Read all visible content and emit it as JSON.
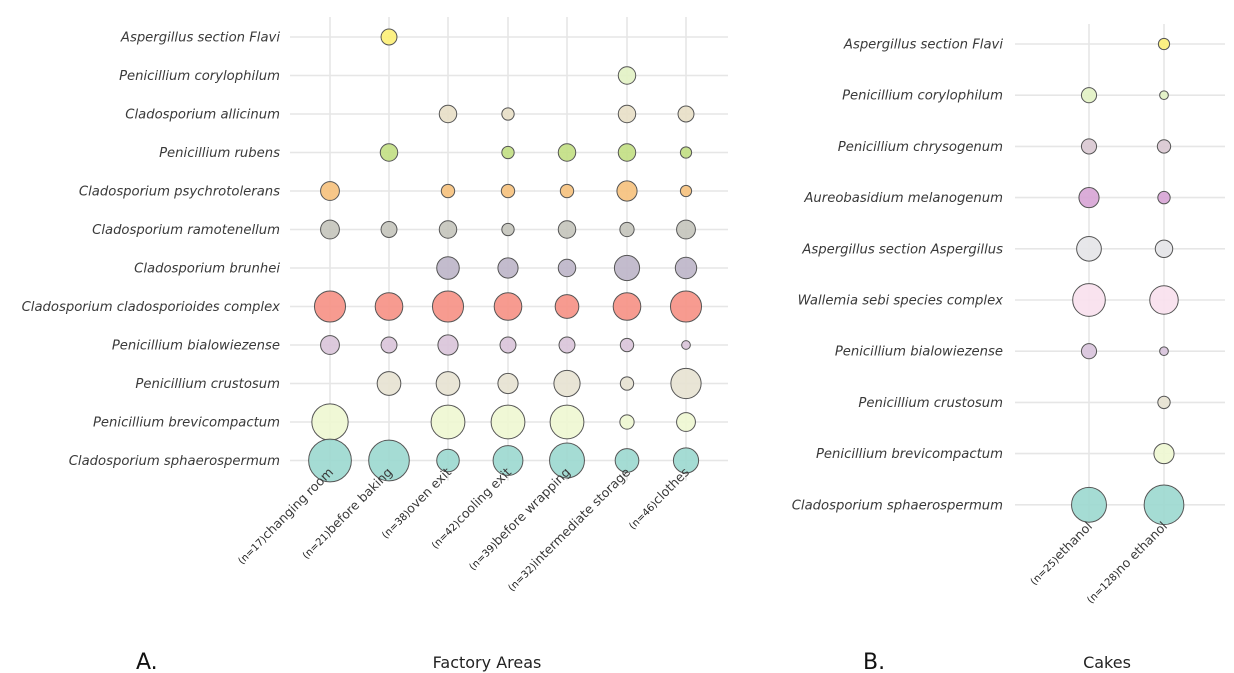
{
  "chart_data": [
    {
      "type": "scatter",
      "panel_label": "A.",
      "xlabel": "Factory Areas",
      "ylabel": "",
      "categories": [
        {
          "count": "(n=17)",
          "name": "changing room"
        },
        {
          "count": "(n=21)",
          "name": "before baking"
        },
        {
          "count": "(n=38)",
          "name": "oven exit"
        },
        {
          "count": "(n=42)",
          "name": "cooling exit"
        },
        {
          "count": "(n=39)",
          "name": "before wrapping"
        },
        {
          "count": "(n=32)",
          "name": "intermediate storage"
        },
        {
          "count": "(n=46)",
          "name": "clothes"
        }
      ],
      "species": [
        {
          "name": "Aspergillus section Flavi",
          "color": "#fdf07a",
          "values": [
            null,
            10,
            null,
            null,
            null,
            null,
            null
          ]
        },
        {
          "name": "Penicillium corylophilum",
          "color": "#e3f2c5",
          "values": [
            null,
            null,
            null,
            null,
            null,
            12,
            null
          ]
        },
        {
          "name": "Cladosporium allicinum",
          "color": "#e8dfc8",
          "values": [
            null,
            null,
            12,
            6,
            null,
            12,
            10
          ]
        },
        {
          "name": "Penicillium rubens",
          "color": "#c3df85",
          "values": [
            null,
            12,
            null,
            6,
            12,
            12,
            5
          ]
        },
        {
          "name": "Cladosporium psychrotolerans",
          "color": "#f6c27f",
          "values": [
            14,
            null,
            7,
            7,
            7,
            16,
            5
          ]
        },
        {
          "name": "Cladosporium ramotenellum",
          "color": "#c6c6bd",
          "values": [
            14,
            10,
            12,
            6,
            12,
            8,
            14
          ]
        },
        {
          "name": "Cladosporium brunhei",
          "color": "#beb6c9",
          "values": [
            null,
            null,
            20,
            16,
            12,
            25,
            18
          ]
        },
        {
          "name": "Cladosporium cladosporioides complex",
          "color": "#f69287",
          "values": [
            38,
            30,
            38,
            30,
            22,
            30,
            38
          ]
        },
        {
          "name": "Penicillium bialowiezense",
          "color": "#dac5da",
          "values": [
            14,
            10,
            16,
            10,
            10,
            7,
            3
          ]
        },
        {
          "name": "Penicillium crustosum",
          "color": "#e7e3d3",
          "values": [
            null,
            22,
            22,
            16,
            27,
            7,
            36
          ]
        },
        {
          "name": "Penicillium brevicompactum",
          "color": "#eff7d3",
          "values": [
            52,
            null,
            45,
            45,
            45,
            8,
            14
          ]
        },
        {
          "name": "Cladosporium sphaerospermum",
          "color": "#9dd9d0",
          "values": [
            72,
            65,
            20,
            35,
            48,
            22,
            25
          ]
        }
      ],
      "legend": "none",
      "grid": true
    },
    {
      "type": "scatter",
      "panel_label": "B.",
      "xlabel": "Cakes",
      "ylabel": "",
      "categories": [
        {
          "count": "(n=25)",
          "name": "ethanol"
        },
        {
          "count": "(n=128)",
          "name": "no ethanol"
        }
      ],
      "species": [
        {
          "name": "Aspergillus section Flavi",
          "color": "#fdf07a",
          "values": [
            null,
            5
          ]
        },
        {
          "name": "Penicillium corylophilum",
          "color": "#e3f2c5",
          "values": [
            9,
            3
          ]
        },
        {
          "name": "Penicillium chrysogenum",
          "color": "#dac9d3",
          "values": [
            9,
            7
          ]
        },
        {
          "name": "Aureobasidium melanogenum",
          "color": "#d8a6d6",
          "values": [
            16,
            6
          ]
        },
        {
          "name": "Aspergillus section Aspergillus",
          "color": "#e5e5e8",
          "values": [
            24,
            12
          ]
        },
        {
          "name": "Wallemia sebi species complex",
          "color": "#f9e1ee",
          "values": [
            42,
            32
          ]
        },
        {
          "name": "Penicillium bialowiezense",
          "color": "#d9c4dc",
          "values": [
            9,
            3
          ]
        },
        {
          "name": "Penicillium crustosum",
          "color": "#e7e3d3",
          "values": [
            null,
            6
          ]
        },
        {
          "name": "Penicillium brevicompactum",
          "color": "#eff7d3",
          "values": [
            null,
            16
          ]
        },
        {
          "name": "Cladosporium sphaerospermum",
          "color": "#9dd9d0",
          "values": [
            48,
            62
          ]
        }
      ],
      "legend": "none",
      "grid": true
    }
  ]
}
